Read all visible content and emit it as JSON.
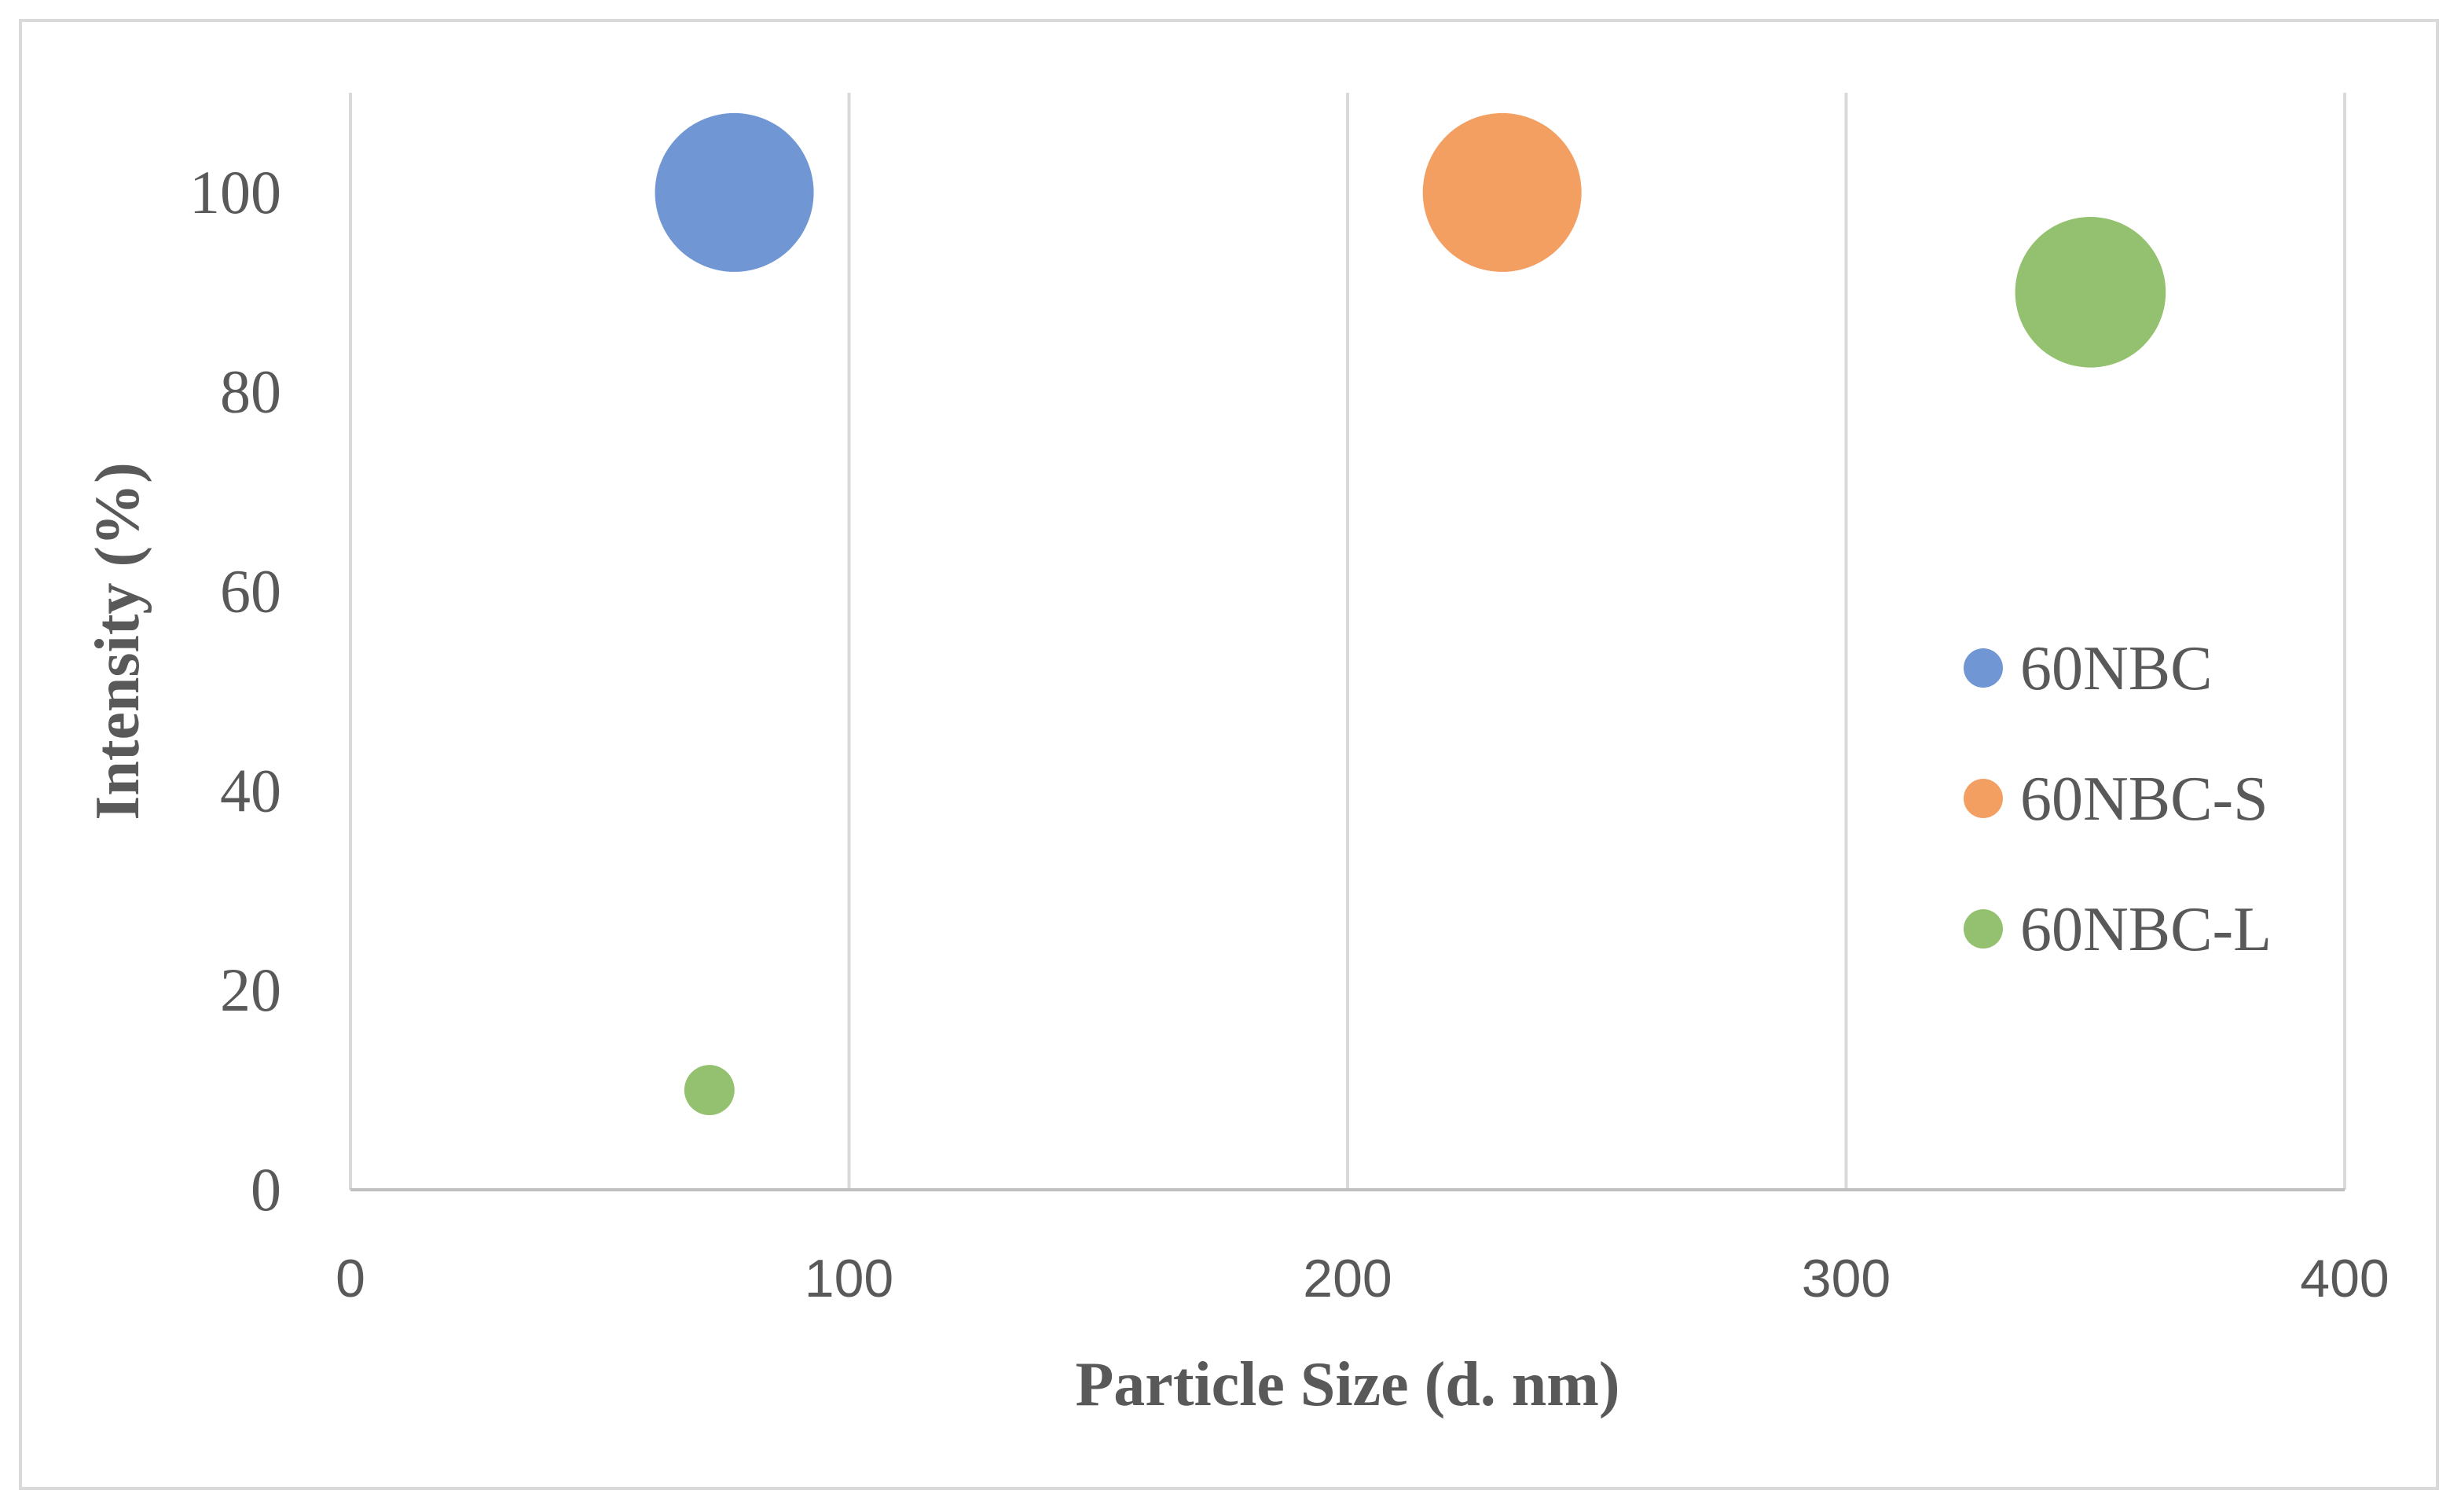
{
  "chart_data": {
    "type": "scatter",
    "xlabel": "Particle Size (d. nm)",
    "ylabel": "Intensity (%)",
    "xlim": [
      0,
      400
    ],
    "ylim": [
      0,
      110
    ],
    "xticks": [
      "0",
      "100",
      "200",
      "300",
      "400"
    ],
    "yticks": [
      "0",
      "20",
      "40",
      "60",
      "80",
      "100"
    ],
    "grid": "vertical",
    "legend_position": "right",
    "bubble": true,
    "series": [
      {
        "name": "60NBC",
        "color": "#7096d4",
        "points": [
          {
            "x": 77,
            "y": 100,
            "size": 100
          }
        ]
      },
      {
        "name": "60NBC-S",
        "color": "#f39f62",
        "points": [
          {
            "x": 231,
            "y": 100,
            "size": 100
          }
        ]
      },
      {
        "name": "60NBC-L",
        "color": "#93c16f",
        "points": [
          {
            "x": 72,
            "y": 10,
            "size": 10
          },
          {
            "x": 349,
            "y": 90,
            "size": 90
          }
        ]
      }
    ]
  }
}
